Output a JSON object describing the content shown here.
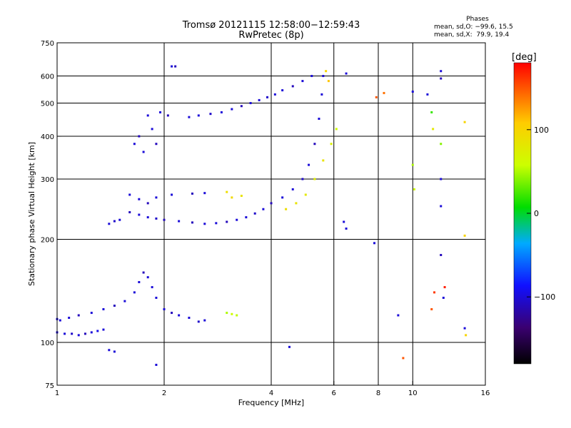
{
  "header": {
    "title_line1": "Tromsø 20121115 12:58:00−12:59:43",
    "title_line2": "RwPretec (8p)"
  },
  "stats": {
    "heading": "Phases",
    "line_o": "mean, sd,O: −99.6, 15.5",
    "line_x": "mean, sd,X:  79.9, 19.4"
  },
  "colorbar": {
    "title": "[deg]",
    "ticks": [
      {
        "value": 100,
        "label": "100"
      },
      {
        "value": 0,
        "label": "0"
      },
      {
        "value": -100,
        "label": "−100"
      }
    ],
    "range": [
      -180,
      180
    ]
  },
  "chart_data": {
    "type": "scatter",
    "xlabel": "Frequency [MHz]",
    "ylabel": "Stationary phase Virtual Height [km]",
    "xscale": "log",
    "yscale": "log",
    "xlim": [
      1,
      16
    ],
    "ylim": [
      75,
      750
    ],
    "xticks": [
      1,
      2,
      4,
      6,
      8,
      10,
      16
    ],
    "xtick_labels": [
      "1",
      "2",
      "4",
      "6",
      "8",
      "10",
      "16"
    ],
    "yticks": [
      75,
      100,
      200,
      300,
      400,
      500,
      600,
      750
    ],
    "ytick_labels": [
      "75",
      "100",
      "200",
      "300",
      "400",
      "500",
      "600",
      "750"
    ],
    "xgrid": [
      2,
      4,
      6,
      8,
      10
    ],
    "ygrid": [
      100,
      200,
      300,
      400,
      500,
      600
    ],
    "color_encodes": "phase [deg]",
    "points": [
      {
        "f": 1.0,
        "h": 107,
        "phase": -100
      },
      {
        "f": 1.05,
        "h": 106,
        "phase": -100
      },
      {
        "f": 1.1,
        "h": 106,
        "phase": -105
      },
      {
        "f": 1.15,
        "h": 105,
        "phase": -100
      },
      {
        "f": 1.2,
        "h": 106,
        "phase": -110
      },
      {
        "f": 1.25,
        "h": 107,
        "phase": -100
      },
      {
        "f": 1.3,
        "h": 108,
        "phase": -95
      },
      {
        "f": 1.35,
        "h": 109,
        "phase": -100
      },
      {
        "f": 1.02,
        "h": 116,
        "phase": -100
      },
      {
        "f": 1.08,
        "h": 118,
        "phase": -100
      },
      {
        "f": 1.15,
        "h": 120,
        "phase": -110
      },
      {
        "f": 1.25,
        "h": 122,
        "phase": -100
      },
      {
        "f": 1.35,
        "h": 125,
        "phase": -100
      },
      {
        "f": 1.45,
        "h": 128,
        "phase": -110
      },
      {
        "f": 1.55,
        "h": 132,
        "phase": -100
      },
      {
        "f": 1.65,
        "h": 140,
        "phase": -100
      },
      {
        "f": 1.7,
        "h": 150,
        "phase": -100
      },
      {
        "f": 1.75,
        "h": 160,
        "phase": -110
      },
      {
        "f": 1.8,
        "h": 155,
        "phase": -100
      },
      {
        "f": 1.85,
        "h": 145,
        "phase": -100
      },
      {
        "f": 1.9,
        "h": 135,
        "phase": -100
      },
      {
        "f": 2.0,
        "h": 125,
        "phase": -100
      },
      {
        "f": 2.1,
        "h": 122,
        "phase": -110
      },
      {
        "f": 2.2,
        "h": 120,
        "phase": -100
      },
      {
        "f": 2.35,
        "h": 118,
        "phase": -100
      },
      {
        "f": 2.5,
        "h": 115,
        "phase": -105
      },
      {
        "f": 2.6,
        "h": 116,
        "phase": -100
      },
      {
        "f": 1.4,
        "h": 95,
        "phase": -100
      },
      {
        "f": 1.45,
        "h": 94,
        "phase": -100
      },
      {
        "f": 1.9,
        "h": 86,
        "phase": -100
      },
      {
        "f": 3.0,
        "h": 122,
        "phase": 50
      },
      {
        "f": 3.1,
        "h": 121,
        "phase": 60
      },
      {
        "f": 3.2,
        "h": 120,
        "phase": 55
      },
      {
        "f": 1.4,
        "h": 222,
        "phase": -100
      },
      {
        "f": 1.45,
        "h": 226,
        "phase": -105
      },
      {
        "f": 1.5,
        "h": 228,
        "phase": -100
      },
      {
        "f": 1.6,
        "h": 240,
        "phase": -110
      },
      {
        "f": 1.7,
        "h": 236,
        "phase": -100
      },
      {
        "f": 1.8,
        "h": 232,
        "phase": -100
      },
      {
        "f": 1.9,
        "h": 230,
        "phase": -105
      },
      {
        "f": 2.0,
        "h": 228,
        "phase": -110
      },
      {
        "f": 2.2,
        "h": 226,
        "phase": -100
      },
      {
        "f": 2.4,
        "h": 224,
        "phase": -110
      },
      {
        "f": 2.6,
        "h": 222,
        "phase": -100
      },
      {
        "f": 2.8,
        "h": 223,
        "phase": -100
      },
      {
        "f": 3.0,
        "h": 225,
        "phase": -110
      },
      {
        "f": 3.2,
        "h": 228,
        "phase": -100
      },
      {
        "f": 3.4,
        "h": 232,
        "phase": -100
      },
      {
        "f": 3.6,
        "h": 238,
        "phase": -105
      },
      {
        "f": 3.8,
        "h": 245,
        "phase": -100
      },
      {
        "f": 4.0,
        "h": 255,
        "phase": -110
      },
      {
        "f": 4.3,
        "h": 265,
        "phase": -100
      },
      {
        "f": 4.6,
        "h": 280,
        "phase": -100
      },
      {
        "f": 4.9,
        "h": 300,
        "phase": -105
      },
      {
        "f": 5.1,
        "h": 330,
        "phase": -100
      },
      {
        "f": 5.3,
        "h": 380,
        "phase": -110
      },
      {
        "f": 5.45,
        "h": 450,
        "phase": -100
      },
      {
        "f": 5.55,
        "h": 530,
        "phase": -100
      },
      {
        "f": 5.6,
        "h": 600,
        "phase": -100
      },
      {
        "f": 4.4,
        "h": 245,
        "phase": 90
      },
      {
        "f": 4.7,
        "h": 255,
        "phase": 85
      },
      {
        "f": 5.0,
        "h": 270,
        "phase": 80
      },
      {
        "f": 5.3,
        "h": 300,
        "phase": 75
      },
      {
        "f": 5.6,
        "h": 340,
        "phase": 85
      },
      {
        "f": 5.9,
        "h": 380,
        "phase": 70
      },
      {
        "f": 6.1,
        "h": 420,
        "phase": 60
      },
      {
        "f": 5.7,
        "h": 620,
        "phase": 100
      },
      {
        "f": 5.8,
        "h": 580,
        "phase": 110
      },
      {
        "f": 3.0,
        "h": 275,
        "phase": 90
      },
      {
        "f": 3.1,
        "h": 265,
        "phase": 95
      },
      {
        "f": 3.3,
        "h": 268,
        "phase": 85
      },
      {
        "f": 1.6,
        "h": 270,
        "phase": -100
      },
      {
        "f": 1.7,
        "h": 262,
        "phase": -100
      },
      {
        "f": 1.8,
        "h": 255,
        "phase": -110
      },
      {
        "f": 1.9,
        "h": 265,
        "phase": -100
      },
      {
        "f": 2.1,
        "h": 270,
        "phase": -100
      },
      {
        "f": 2.4,
        "h": 272,
        "phase": -110
      },
      {
        "f": 2.6,
        "h": 273,
        "phase": -100
      },
      {
        "f": 1.65,
        "h": 380,
        "phase": -100
      },
      {
        "f": 1.7,
        "h": 400,
        "phase": -110
      },
      {
        "f": 1.75,
        "h": 360,
        "phase": -100
      },
      {
        "f": 1.85,
        "h": 420,
        "phase": -100
      },
      {
        "f": 1.9,
        "h": 380,
        "phase": -110
      },
      {
        "f": 1.8,
        "h": 460,
        "phase": -100
      },
      {
        "f": 1.95,
        "h": 470,
        "phase": -100
      },
      {
        "f": 2.05,
        "h": 460,
        "phase": -110
      },
      {
        "f": 2.35,
        "h": 455,
        "phase": -100
      },
      {
        "f": 2.5,
        "h": 460,
        "phase": -100
      },
      {
        "f": 2.7,
        "h": 465,
        "phase": -105
      },
      {
        "f": 2.9,
        "h": 470,
        "phase": -100
      },
      {
        "f": 3.1,
        "h": 480,
        "phase": -100
      },
      {
        "f": 3.3,
        "h": 490,
        "phase": -110
      },
      {
        "f": 3.5,
        "h": 500,
        "phase": -100
      },
      {
        "f": 3.7,
        "h": 510,
        "phase": -100
      },
      {
        "f": 3.9,
        "h": 520,
        "phase": -105
      },
      {
        "f": 4.1,
        "h": 530,
        "phase": -100
      },
      {
        "f": 4.3,
        "h": 545,
        "phase": -100
      },
      {
        "f": 4.6,
        "h": 560,
        "phase": -110
      },
      {
        "f": 4.9,
        "h": 580,
        "phase": -100
      },
      {
        "f": 5.2,
        "h": 600,
        "phase": -100
      },
      {
        "f": 2.1,
        "h": 640,
        "phase": -100
      },
      {
        "f": 2.15,
        "h": 640,
        "phase": -110
      },
      {
        "f": 6.5,
        "h": 610,
        "phase": -100
      },
      {
        "f": 6.4,
        "h": 225,
        "phase": -100
      },
      {
        "f": 6.5,
        "h": 215,
        "phase": -100
      },
      {
        "f": 7.8,
        "h": 195,
        "phase": -100
      },
      {
        "f": 7.9,
        "h": 520,
        "phase": 150
      },
      {
        "f": 8.3,
        "h": 535,
        "phase": 140
      },
      {
        "f": 9.1,
        "h": 120,
        "phase": -100
      },
      {
        "f": 9.4,
        "h": 90,
        "phase": 150
      },
      {
        "f": 10.0,
        "h": 540,
        "phase": -100
      },
      {
        "f": 10.0,
        "h": 330,
        "phase": 50
      },
      {
        "f": 10.1,
        "h": 280,
        "phase": 60
      },
      {
        "f": 11.0,
        "h": 530,
        "phase": -100
      },
      {
        "f": 11.3,
        "h": 470,
        "phase": 20
      },
      {
        "f": 11.4,
        "h": 420,
        "phase": 80
      },
      {
        "f": 11.3,
        "h": 125,
        "phase": 150
      },
      {
        "f": 11.5,
        "h": 140,
        "phase": 160
      },
      {
        "f": 12.0,
        "h": 620,
        "phase": -100
      },
      {
        "f": 12.0,
        "h": 590,
        "phase": -110
      },
      {
        "f": 12.0,
        "h": 380,
        "phase": 40
      },
      {
        "f": 12.0,
        "h": 300,
        "phase": -100
      },
      {
        "f": 12.0,
        "h": 250,
        "phase": -100
      },
      {
        "f": 12.0,
        "h": 180,
        "phase": -110
      },
      {
        "f": 12.3,
        "h": 145,
        "phase": 170
      },
      {
        "f": 12.2,
        "h": 135,
        "phase": -100
      },
      {
        "f": 14.0,
        "h": 440,
        "phase": 100
      },
      {
        "f": 14.0,
        "h": 110,
        "phase": -100
      },
      {
        "f": 14.1,
        "h": 105,
        "phase": 100
      },
      {
        "f": 14.0,
        "h": 205,
        "phase": 100
      },
      {
        "f": 4.5,
        "h": 97,
        "phase": -100
      },
      {
        "f": 1.0,
        "h": 117,
        "phase": -100
      }
    ]
  }
}
